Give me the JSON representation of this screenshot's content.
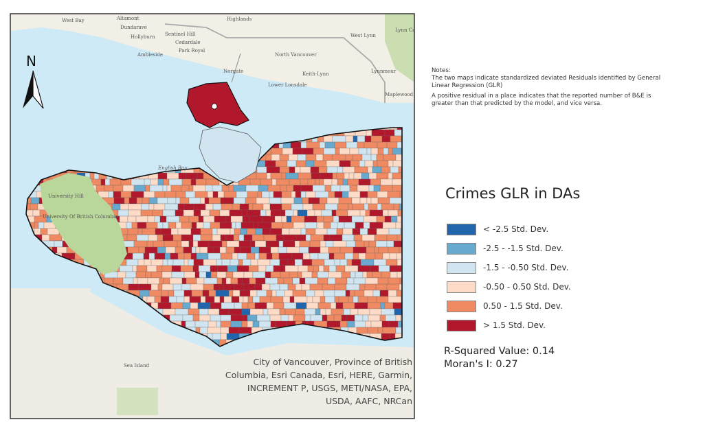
{
  "map": {
    "north_arrow_label": "N",
    "place_labels": [
      "West Bay",
      "Altamont",
      "Dundarave",
      "Hollyburn",
      "Sentinel Hill",
      "Cedardale",
      "Ambleside",
      "Park Royal",
      "Highlands",
      "North Vancouver",
      "West Lynn",
      "Lynn Canyon Park",
      "Norgate",
      "Lower Lonsdale",
      "Keith-Lynn",
      "Lynnmour",
      "Maplewood",
      "English Bay",
      "University Hill",
      "University Of British Columbia",
      "Sea Island"
    ],
    "attribution": [
      "City of Vancouver, Province of British",
      "Columbia, Esri Canada, Esri, HERE, Garmin,",
      "INCREMENT P, USGS, METI/NASA, EPA,",
      "USDA, AAFC, NRCan"
    ],
    "colors": {
      "water": "#cfeaf7",
      "land": "#f2efe6",
      "park": "#b9d79a",
      "boundary": "#111111"
    }
  },
  "notes": {
    "heading": "Notes:",
    "line1": "The two maps indicate standardized deviated Residuals identified by General Linear Regression (GLR)",
    "line2": "A positive residual in a place indicates that the reported number of B&E is greater than that predicted by the model, and vice versa."
  },
  "legend": {
    "title": "Crimes GLR in DAs",
    "classes": [
      {
        "label": "< -2.5 Std. Dev.",
        "color": "#2166ac"
      },
      {
        "label": "-2.5 - -1.5 Std. Dev.",
        "color": "#67a9cf"
      },
      {
        "label": "-1.5 - -0.50 Std. Dev.",
        "color": "#d1e5f0"
      },
      {
        "label": "-0.50 - 0.50 Std. Dev.",
        "color": "#fddbc7"
      },
      {
        "label": "0.50 - 1.5 Std. Dev.",
        "color": "#ef8a62"
      },
      {
        "label": "> 1.5 Std. Dev.",
        "color": "#b2182b"
      }
    ]
  },
  "stats": {
    "r_squared": "R-Squared Value: 0.14",
    "morans_i": "Moran's I: 0.27"
  }
}
